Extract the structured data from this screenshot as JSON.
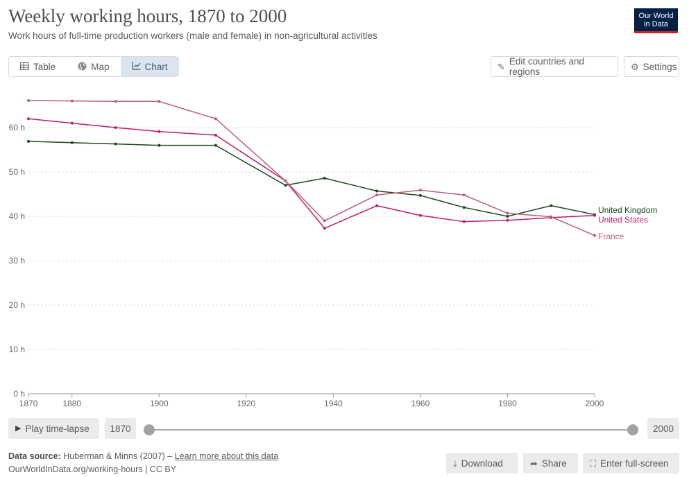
{
  "header": {
    "title": "Weekly working hours, 1870 to 2000",
    "subtitle": "Work hours of full-time production workers (male and female) in non-agricultural activities",
    "logo_line1": "Our World",
    "logo_line2": "in Data"
  },
  "tabs": [
    {
      "label": "Table",
      "icon": "table-icon"
    },
    {
      "label": "Map",
      "icon": "globe-icon"
    },
    {
      "label": "Chart",
      "icon": "line-chart-icon",
      "active": true
    }
  ],
  "toolbar": {
    "edit_label": "Edit countries and regions",
    "settings_label": "Settings"
  },
  "timeline": {
    "play_label": "Play time-lapse",
    "start_year": "1870",
    "end_year": "2000"
  },
  "footer": {
    "source_label": "Data source:",
    "source_text": "Huberman & Minns (2007) –",
    "learn_more": "Learn more about this data",
    "url": "OurWorldInData.org/working-hours | CC BY",
    "download_label": "Download",
    "share_label": "Share",
    "fullscreen_label": "Enter full-screen"
  },
  "colors": {
    "united_kingdom": "#1e4620",
    "united_states": "#be1e6e",
    "france": "#b95f75",
    "grid": "#dddddd",
    "axis_text": "#666666"
  },
  "chart_data": {
    "type": "line",
    "title": "Weekly working hours, 1870 to 2000",
    "xlim": [
      1870,
      2000
    ],
    "ylim": [
      0,
      70
    ],
    "x_ticks": [
      1870,
      1880,
      1900,
      1920,
      1940,
      1960,
      1980,
      2000
    ],
    "y_ticks": [
      0,
      10,
      20,
      30,
      40,
      50,
      60
    ],
    "y_unit": " h",
    "grid": "horizontal",
    "legend": "inline-right",
    "series": [
      {
        "name": "United Kingdom",
        "color_key": "united_kingdom",
        "x": [
          1870,
          1880,
          1890,
          1900,
          1913,
          1929,
          1938,
          1950,
          1960,
          1970,
          1980,
          1990,
          2000
        ],
        "y": [
          56.9,
          56.6,
          56.3,
          56.0,
          56.0,
          47.0,
          48.6,
          45.7,
          44.7,
          42.0,
          40.0,
          42.4,
          40.4
        ]
      },
      {
        "name": "United States",
        "color_key": "united_states",
        "x": [
          1870,
          1880,
          1890,
          1900,
          1913,
          1929,
          1938,
          1950,
          1960,
          1970,
          1980,
          1990,
          2000
        ],
        "y": [
          62.0,
          61.0,
          60.0,
          59.1,
          58.3,
          48.0,
          37.3,
          42.4,
          40.2,
          38.8,
          39.1,
          39.7,
          40.2
        ]
      },
      {
        "name": "France",
        "color_key": "france",
        "x": [
          1870,
          1880,
          1890,
          1900,
          1913,
          1929,
          1938,
          1950,
          1960,
          1970,
          1980,
          1990,
          2000
        ],
        "y": [
          66.1,
          66.0,
          65.9,
          65.9,
          62.0,
          48.0,
          39.0,
          44.8,
          45.9,
          44.8,
          40.7,
          39.9,
          35.7
        ]
      }
    ]
  }
}
